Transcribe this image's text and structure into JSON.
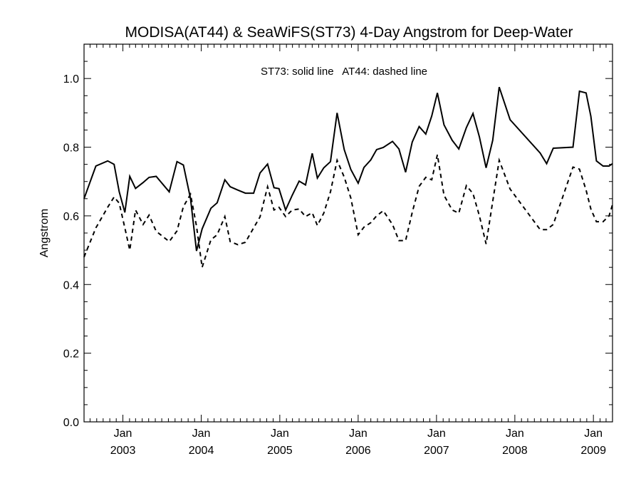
{
  "chart_data": {
    "type": "line",
    "title": "MODISA(AT44) & SeaWiFS(ST73) 4-Day Angstrom for Deep-Water",
    "xlabel": "",
    "ylabel": "Angstrom",
    "annotation": "ST73: solid line   AT44: dashed line",
    "ylim": [
      0.0,
      1.1
    ],
    "xlim": [
      "2002-07-04",
      "2009-03-31"
    ],
    "y_ticks": [
      "0.0",
      "0.2",
      "0.4",
      "0.6",
      "0.8",
      "1.0"
    ],
    "x_ticks": [
      {
        "month": "Jan",
        "year": "2003",
        "date": "2003-01-01"
      },
      {
        "month": "Jan",
        "year": "2004",
        "date": "2004-01-01"
      },
      {
        "month": "Jan",
        "year": "2005",
        "date": "2005-01-01"
      },
      {
        "month": "Jan",
        "year": "2006",
        "date": "2006-01-01"
      },
      {
        "month": "Jan",
        "year": "2007",
        "date": "2007-01-01"
      },
      {
        "month": "Jan",
        "year": "2008",
        "date": "2008-01-01"
      },
      {
        "month": "Jan",
        "year": "2009",
        "date": "2009-01-01"
      }
    ],
    "grid": false,
    "series": [
      {
        "name": "ST73",
        "style": "solid",
        "color": "#000000",
        "x": [
          "2002-07-04",
          "2002-08-28",
          "2002-10-22",
          "2002-11-21",
          "2002-12-15",
          "2003-01-10",
          "2003-02-02",
          "2003-03-01",
          "2003-04-05",
          "2003-05-03",
          "2003-06-05",
          "2003-08-05",
          "2003-09-10",
          "2003-10-10",
          "2003-11-12",
          "2003-12-10",
          "2004-01-05",
          "2004-02-15",
          "2004-03-15",
          "2004-04-20",
          "2004-05-15",
          "2004-06-20",
          "2004-07-25",
          "2004-09-01",
          "2004-10-01",
          "2004-11-05",
          "2004-12-05",
          "2004-12-28",
          "2005-01-28",
          "2005-02-28",
          "2005-04-01",
          "2005-05-01",
          "2005-06-01",
          "2005-06-25",
          "2005-07-25",
          "2005-08-25",
          "2005-09-25",
          "2005-10-28",
          "2005-11-28",
          "2006-01-01",
          "2006-01-28",
          "2006-03-01",
          "2006-03-28",
          "2006-04-28",
          "2006-06-10",
          "2006-07-10",
          "2006-08-10",
          "2006-09-10",
          "2006-10-12",
          "2006-11-12",
          "2006-12-10",
          "2007-01-05",
          "2007-02-05",
          "2007-03-15",
          "2007-04-15",
          "2007-05-20",
          "2007-06-20",
          "2007-07-20",
          "2007-08-20",
          "2007-09-20",
          "2007-10-20",
          "2007-12-10",
          "2008-04-28",
          "2008-05-28",
          "2008-06-28",
          "2008-09-28",
          "2008-10-28",
          "2008-11-28",
          "2008-12-20",
          "2009-01-15",
          "2009-02-15",
          "2009-03-15",
          "2009-03-31"
        ],
        "values": [
          0.65,
          0.745,
          0.76,
          0.75,
          0.67,
          0.61,
          0.715,
          0.68,
          0.697,
          0.712,
          0.715,
          0.67,
          0.758,
          0.748,
          0.65,
          0.498,
          0.562,
          0.622,
          0.638,
          0.705,
          0.685,
          0.675,
          0.666,
          0.666,
          0.725,
          0.751,
          0.682,
          0.679,
          0.617,
          0.66,
          0.701,
          0.69,
          0.782,
          0.71,
          0.74,
          0.758,
          0.9,
          0.793,
          0.735,
          0.695,
          0.741,
          0.763,
          0.793,
          0.799,
          0.817,
          0.795,
          0.727,
          0.815,
          0.86,
          0.838,
          0.891,
          0.958,
          0.865,
          0.82,
          0.795,
          0.857,
          0.898,
          0.83,
          0.74,
          0.82,
          0.975,
          0.88,
          0.783,
          0.752,
          0.797,
          0.8,
          0.963,
          0.958,
          0.89,
          0.76,
          0.745,
          0.745,
          0.752
        ]
      },
      {
        "name": "AT44",
        "style": "dashed",
        "color": "#000000",
        "x": [
          "2002-07-04",
          "2002-08-28",
          "2002-10-22",
          "2002-11-21",
          "2002-12-15",
          "2003-01-10",
          "2003-02-02",
          "2003-03-01",
          "2003-04-05",
          "2003-05-03",
          "2003-06-05",
          "2003-08-05",
          "2003-09-10",
          "2003-10-10",
          "2003-11-12",
          "2003-12-10",
          "2004-01-05",
          "2004-02-15",
          "2004-03-15",
          "2004-04-20",
          "2004-05-15",
          "2004-06-20",
          "2004-07-25",
          "2004-09-01",
          "2004-10-01",
          "2004-11-05",
          "2004-12-05",
          "2004-12-28",
          "2005-01-28",
          "2005-02-28",
          "2005-04-01",
          "2005-05-01",
          "2005-06-01",
          "2005-06-25",
          "2005-07-25",
          "2005-08-25",
          "2005-09-25",
          "2005-10-28",
          "2005-11-28",
          "2006-01-01",
          "2006-01-28",
          "2006-03-01",
          "2006-03-28",
          "2006-04-28",
          "2006-06-10",
          "2006-07-10",
          "2006-08-10",
          "2006-09-10",
          "2006-10-12",
          "2006-11-12",
          "2006-12-10",
          "2007-01-05",
          "2007-02-05",
          "2007-03-15",
          "2007-04-15",
          "2007-05-20",
          "2007-06-20",
          "2007-07-20",
          "2007-08-20",
          "2007-09-20",
          "2007-10-20",
          "2007-12-10",
          "2008-04-28",
          "2008-05-28",
          "2008-06-28",
          "2008-09-28",
          "2008-10-28",
          "2008-11-28",
          "2008-12-20",
          "2009-01-15",
          "2009-02-15",
          "2009-03-15",
          "2009-03-31"
        ],
        "values": [
          0.48,
          0.565,
          0.625,
          0.655,
          0.637,
          0.565,
          0.5,
          0.617,
          0.575,
          0.602,
          0.555,
          0.525,
          0.556,
          0.627,
          0.663,
          0.57,
          0.45,
          0.53,
          0.545,
          0.598,
          0.525,
          0.516,
          0.523,
          0.565,
          0.597,
          0.685,
          0.617,
          0.625,
          0.598,
          0.617,
          0.62,
          0.598,
          0.609,
          0.572,
          0.608,
          0.67,
          0.762,
          0.713,
          0.652,
          0.545,
          0.567,
          0.58,
          0.6,
          0.615,
          0.575,
          0.528,
          0.528,
          0.61,
          0.686,
          0.712,
          0.705,
          0.778,
          0.66,
          0.617,
          0.608,
          0.688,
          0.665,
          0.6,
          0.518,
          0.642,
          0.762,
          0.678,
          0.56,
          0.56,
          0.575,
          0.742,
          0.736,
          0.675,
          0.62,
          0.583,
          0.583,
          0.6,
          0.633
        ]
      }
    ]
  }
}
